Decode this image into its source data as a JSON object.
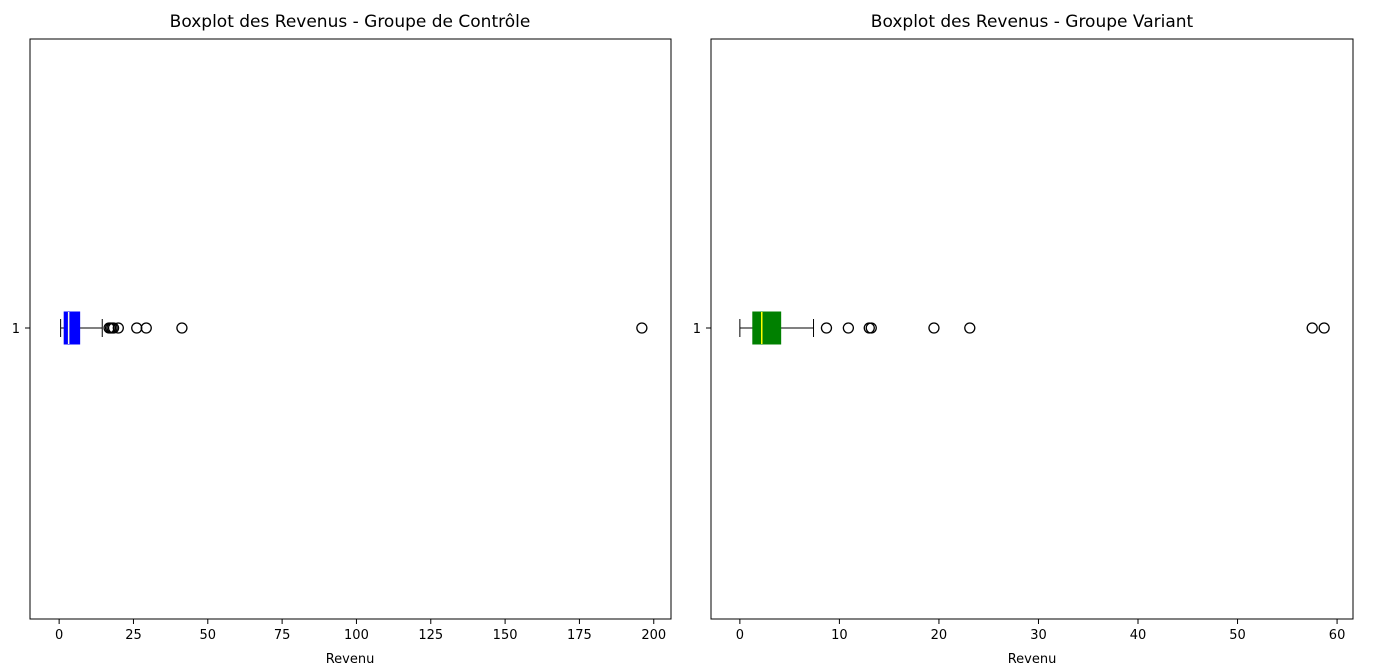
{
  "figure": {
    "background": "#ffffff"
  },
  "chart_data": [
    {
      "type": "boxplot",
      "orientation": "horizontal",
      "title": "Boxplot des Revenus - Groupe de Contrôle",
      "xlabel": "Revenu",
      "ylabel": "",
      "xlim": [
        -9.8,
        205.8
      ],
      "x_ticks": [
        0,
        25,
        50,
        75,
        100,
        125,
        150,
        175,
        200
      ],
      "y_ticks": [
        "1"
      ],
      "grid": false,
      "series": [
        {
          "category": "1",
          "whisker_low": 0.5,
          "q1": 1.7,
          "median": 3.2,
          "q3": 6.9,
          "whisker_high": 14.5,
          "outliers": [
            16.8,
            17.3,
            17.8,
            18.3,
            19.9,
            26.1,
            29.3,
            41.3,
            196.0
          ],
          "box_color": "#0000ff",
          "median_color": "#ffffe0"
        }
      ]
    },
    {
      "type": "boxplot",
      "orientation": "horizontal",
      "title": "Boxplot des Revenus - Groupe Variant",
      "xlabel": "Revenu",
      "ylabel": "",
      "xlim": [
        -2.9,
        61.6
      ],
      "x_ticks": [
        0,
        10,
        20,
        30,
        40,
        50,
        60
      ],
      "y_ticks": [
        "1"
      ],
      "grid": false,
      "series": [
        {
          "category": "1",
          "whisker_low": 0.0,
          "q1": 1.3,
          "median": 2.2,
          "q3": 4.1,
          "whisker_high": 7.4,
          "outliers": [
            8.7,
            10.9,
            13.0,
            13.2,
            19.5,
            23.1,
            57.5,
            58.7
          ],
          "box_color": "#008000",
          "median_color": "#ffff00"
        }
      ]
    }
  ]
}
